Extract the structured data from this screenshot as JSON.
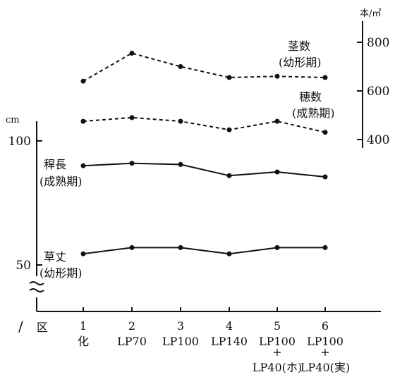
{
  "chart_data": {
    "type": "line",
    "categories": [
      "1",
      "2",
      "3",
      "4",
      "5",
      "6"
    ],
    "category_labels": [
      [
        "1",
        "化"
      ],
      [
        "2",
        "LP70"
      ],
      [
        "3",
        "LP100"
      ],
      [
        "4",
        "LP140"
      ],
      [
        "5",
        "LP100",
        "+",
        "LP40(ホ)"
      ],
      [
        "6",
        "LP100",
        "+",
        "LP40(実)"
      ]
    ],
    "x_axis_label": "区",
    "left_axis": {
      "unit": "cm",
      "ticks": [
        50,
        100
      ],
      "tick_labels": [
        "50",
        "100"
      ],
      "ylim": [
        38,
        100
      ],
      "broken": true
    },
    "right_axis": {
      "unit": "本/㎡",
      "ticks": [
        400,
        600,
        800
      ],
      "tick_labels": [
        "400",
        "600",
        "800"
      ],
      "ylim": [
        400,
        800
      ]
    },
    "series": [
      {
        "name": "茎数",
        "sub": "(幼形期)",
        "axis": "right",
        "style": "dashed",
        "values": [
          640,
          755,
          700,
          655,
          660,
          655
        ]
      },
      {
        "name": "穂数",
        "sub": "(成熟期)",
        "axis": "right",
        "style": "dashed",
        "values": [
          475,
          490,
          475,
          440,
          475,
          430
        ]
      },
      {
        "name": "稈長",
        "sub": "(成熟期)",
        "axis": "left",
        "style": "solid",
        "values": [
          90,
          91,
          90.5,
          86,
          87.5,
          85.5
        ]
      },
      {
        "name": "草丈",
        "sub": "(幼形期)",
        "axis": "left",
        "style": "solid",
        "values": [
          54.5,
          57,
          57,
          54.5,
          57,
          57
        ]
      }
    ]
  }
}
